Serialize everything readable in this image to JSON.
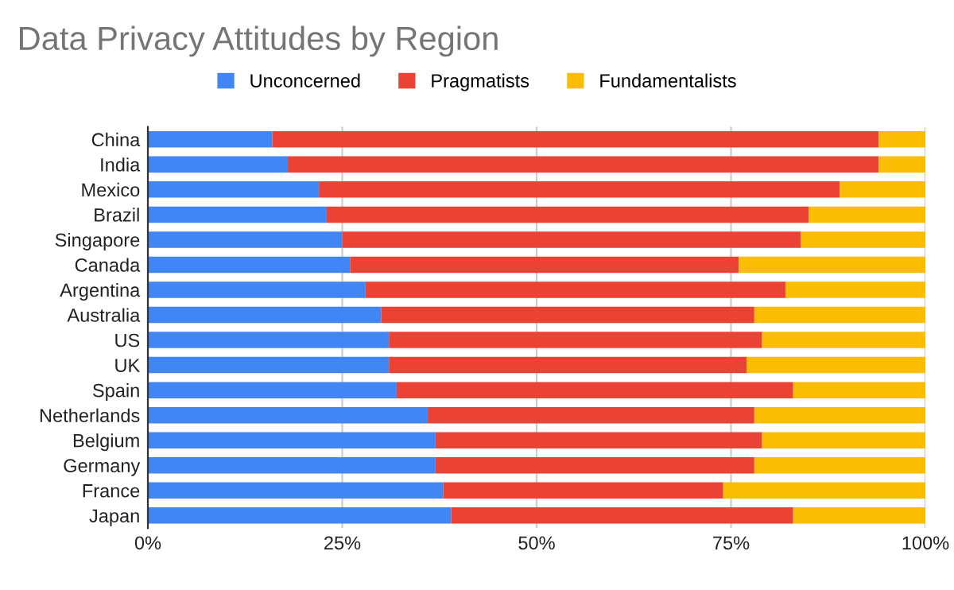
{
  "chart_data": {
    "type": "bar",
    "title": "Data Privacy Attitudes by Region",
    "orientation": "horizontal",
    "stacked": true,
    "categories": [
      "China",
      "India",
      "Mexico",
      "Brazil",
      "Singapore",
      "Canada",
      "Argentina",
      "Australia",
      "US",
      "UK",
      "Spain",
      "Netherlands",
      "Belgium",
      "Germany",
      "France",
      "Japan"
    ],
    "series": [
      {
        "name": "Unconcerned",
        "color": "#4285f4",
        "values": [
          16,
          18,
          22,
          23,
          25,
          26,
          28,
          30,
          31,
          31,
          32,
          36,
          37,
          37,
          38,
          39
        ]
      },
      {
        "name": "Pragmatists",
        "color": "#ea4335",
        "values": [
          78,
          76,
          67,
          62,
          59,
          50,
          54,
          48,
          48,
          46,
          51,
          42,
          42,
          41,
          36,
          44
        ]
      },
      {
        "name": "Fundamentalists",
        "color": "#fbbc04",
        "values": [
          6,
          6,
          11,
          15,
          16,
          24,
          18,
          22,
          21,
          23,
          17,
          22,
          21,
          22,
          26,
          17
        ]
      }
    ],
    "xlim": [
      0,
      100
    ],
    "xticks": [
      {
        "value": 0,
        "label": "0%"
      },
      {
        "value": 25,
        "label": "25%"
      },
      {
        "value": 50,
        "label": "50%"
      },
      {
        "value": 75,
        "label": "75%"
      },
      {
        "value": 100,
        "label": "100%"
      }
    ],
    "grid": "x",
    "legend": "top"
  }
}
